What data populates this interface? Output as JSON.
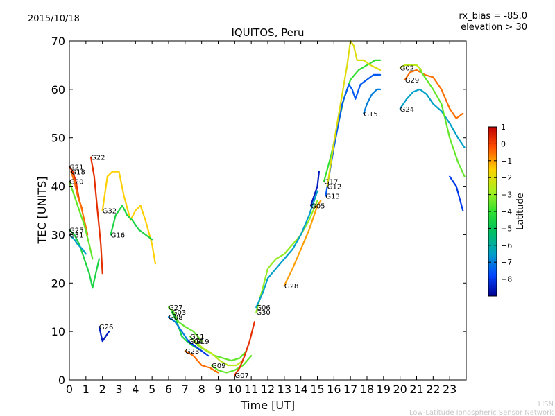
{
  "chart_data": {
    "type": "scatter",
    "date": "2015/10/18",
    "title": "IQUITOS, Peru",
    "meta": [
      "rx_bias = -85.0",
      "elevation > 30"
    ],
    "xlabel": "Time [UT]",
    "ylabel": "TEC [UNITS]",
    "xlim": [
      0,
      24
    ],
    "ylim": [
      0,
      70
    ],
    "xticks": [
      0,
      1,
      2,
      3,
      4,
      5,
      6,
      7,
      8,
      9,
      10,
      11,
      12,
      13,
      14,
      15,
      16,
      17,
      18,
      19,
      20,
      21,
      22,
      23
    ],
    "yticks": [
      0,
      10,
      20,
      30,
      40,
      50,
      60,
      70
    ],
    "colorbar": {
      "label": "Latitude",
      "range": [
        -9,
        1
      ],
      "ticks": [
        1,
        0,
        -1,
        -2,
        -3,
        -4,
        -5,
        -6,
        -7,
        -8
      ]
    },
    "series": [
      {
        "name": "G21",
        "lat": 0.3,
        "points": [
          [
            0.0,
            44
          ],
          [
            0.2,
            43
          ],
          [
            0.4,
            41
          ],
          [
            0.6,
            37
          ],
          [
            0.8,
            35
          ]
        ]
      },
      {
        "name": "G18",
        "lat": -0.5,
        "points": [
          [
            0.1,
            43
          ],
          [
            0.3,
            41
          ],
          [
            0.5,
            38
          ],
          [
            0.7,
            36
          ],
          [
            0.9,
            33
          ],
          [
            1.1,
            30
          ]
        ]
      },
      {
        "name": "G20",
        "lat": -3.5,
        "points": [
          [
            0.0,
            41
          ],
          [
            0.3,
            38
          ],
          [
            0.6,
            35
          ],
          [
            0.9,
            32
          ],
          [
            1.2,
            28
          ],
          [
            1.4,
            25
          ]
        ]
      },
      {
        "name": "G22",
        "lat": 0.3,
        "points": [
          [
            1.3,
            46
          ],
          [
            1.5,
            42
          ],
          [
            1.7,
            35
          ],
          [
            1.9,
            28
          ],
          [
            2.0,
            22
          ]
        ]
      },
      {
        "name": "G25",
        "lat": -4.5,
        "points": [
          [
            0.0,
            31
          ],
          [
            0.3,
            30
          ],
          [
            0.6,
            28
          ],
          [
            0.9,
            25
          ],
          [
            1.2,
            22
          ],
          [
            1.4,
            19
          ],
          [
            1.6,
            22
          ],
          [
            1.8,
            25
          ]
        ]
      },
      {
        "name": "G31",
        "lat": -6.5,
        "points": [
          [
            0.0,
            30
          ],
          [
            0.3,
            29
          ],
          [
            0.5,
            28
          ],
          [
            0.8,
            27
          ],
          [
            1.0,
            26
          ]
        ]
      },
      {
        "name": "G26",
        "lat": -8.5,
        "points": [
          [
            1.8,
            11
          ],
          [
            2.0,
            8
          ],
          [
            2.2,
            9
          ],
          [
            2.4,
            10
          ]
        ]
      },
      {
        "name": "G32",
        "lat": -1.5,
        "points": [
          [
            2.0,
            35
          ],
          [
            2.3,
            42
          ],
          [
            2.6,
            43
          ],
          [
            3.0,
            43
          ],
          [
            3.3,
            38
          ],
          [
            3.7,
            33
          ],
          [
            4.0,
            35
          ],
          [
            4.3,
            36
          ],
          [
            4.6,
            33
          ],
          [
            5.0,
            28
          ],
          [
            5.2,
            24
          ]
        ]
      },
      {
        "name": "G16",
        "lat": -4.5,
        "points": [
          [
            2.5,
            30
          ],
          [
            2.8,
            34
          ],
          [
            3.2,
            36
          ],
          [
            3.5,
            34
          ],
          [
            3.8,
            33
          ],
          [
            4.2,
            31
          ],
          [
            4.6,
            30
          ],
          [
            5.0,
            29
          ]
        ]
      },
      {
        "name": "G27",
        "lat": -3.5,
        "points": [
          [
            6.0,
            15
          ],
          [
            6.3,
            14
          ],
          [
            6.6,
            12
          ],
          [
            7.0,
            11
          ],
          [
            7.5,
            10
          ],
          [
            8.0,
            8
          ]
        ]
      },
      {
        "name": "G03",
        "lat": -4.5,
        "points": [
          [
            6.2,
            14
          ],
          [
            6.5,
            12
          ],
          [
            6.8,
            9
          ],
          [
            7.1,
            8
          ],
          [
            7.5,
            7
          ],
          [
            8.0,
            6
          ]
        ]
      },
      {
        "name": "G08",
        "lat": -7.0,
        "points": [
          [
            6.0,
            13
          ],
          [
            6.4,
            12
          ],
          [
            6.8,
            10
          ],
          [
            7.2,
            8
          ],
          [
            7.6,
            7
          ]
        ]
      },
      {
        "name": "G11",
        "lat": -3.5,
        "points": [
          [
            7.3,
            9
          ],
          [
            7.8,
            7
          ],
          [
            8.3,
            6
          ],
          [
            8.8,
            5
          ],
          [
            9.3,
            4.5
          ],
          [
            9.8,
            4
          ],
          [
            10.3,
            4.5
          ],
          [
            10.7,
            6
          ]
        ]
      },
      {
        "name": "G19",
        "lat": -2.5,
        "points": [
          [
            7.6,
            8
          ],
          [
            8.1,
            6.5
          ],
          [
            8.6,
            5.5
          ],
          [
            9.1,
            4
          ],
          [
            9.6,
            3
          ],
          [
            10.1,
            3
          ],
          [
            10.5,
            4
          ]
        ]
      },
      {
        "name": "G04",
        "lat": -8.0,
        "points": [
          [
            7.2,
            8
          ],
          [
            7.6,
            7
          ],
          [
            8.0,
            6
          ],
          [
            8.4,
            5
          ]
        ]
      },
      {
        "name": "G23",
        "lat": -0.5,
        "points": [
          [
            7.0,
            6
          ],
          [
            7.5,
            5
          ],
          [
            8.0,
            3
          ],
          [
            8.5,
            2.5
          ],
          [
            9.0,
            1.5
          ]
        ]
      },
      {
        "name": "G09",
        "lat": -3.5,
        "points": [
          [
            8.6,
            3
          ],
          [
            9.0,
            2
          ],
          [
            9.5,
            1.5
          ],
          [
            10.0,
            2
          ],
          [
            10.5,
            3
          ],
          [
            11.0,
            5
          ]
        ]
      },
      {
        "name": "G07",
        "lat": 0.3,
        "points": [
          [
            10.0,
            1
          ],
          [
            10.3,
            2.5
          ],
          [
            10.6,
            5
          ],
          [
            10.9,
            8
          ],
          [
            11.2,
            12
          ]
        ]
      },
      {
        "name": "G30",
        "lat": -3.0,
        "points": [
          [
            11.3,
            14
          ],
          [
            11.7,
            19
          ],
          [
            12.0,
            23
          ],
          [
            12.5,
            25
          ],
          [
            13.0,
            26
          ],
          [
            13.5,
            28
          ],
          [
            14.0,
            30
          ],
          [
            14.5,
            33
          ],
          [
            15.0,
            37
          ]
        ]
      },
      {
        "name": "G06",
        "lat": -6.5,
        "points": [
          [
            11.3,
            15
          ],
          [
            11.7,
            18
          ],
          [
            12.0,
            21
          ],
          [
            12.5,
            23
          ],
          [
            13.0,
            25
          ],
          [
            13.5,
            27
          ],
          [
            14.0,
            30
          ],
          [
            14.5,
            34
          ],
          [
            15.0,
            39
          ]
        ]
      },
      {
        "name": "G28",
        "lat": -1.0,
        "points": [
          [
            13.0,
            19.5
          ],
          [
            13.5,
            23
          ],
          [
            14.0,
            27
          ],
          [
            14.5,
            31
          ],
          [
            15.0,
            36
          ],
          [
            15.2,
            37
          ]
        ]
      },
      {
        "name": "G05",
        "lat": -8.5,
        "points": [
          [
            14.6,
            36
          ],
          [
            14.8,
            38
          ],
          [
            15.0,
            40
          ],
          [
            15.1,
            43
          ]
        ]
      },
      {
        "name": "G17",
        "lat": -4.0,
        "points": [
          [
            15.4,
            41
          ],
          [
            15.8,
            46
          ],
          [
            16.2,
            52
          ],
          [
            16.6,
            58
          ],
          [
            17.0,
            62
          ],
          [
            17.5,
            64
          ],
          [
            18.0,
            65
          ],
          [
            18.5,
            66
          ],
          [
            18.8,
            66
          ]
        ]
      },
      {
        "name": "G13",
        "lat": -7.5,
        "points": [
          [
            15.5,
            38
          ],
          [
            16.0,
            48
          ],
          [
            16.5,
            57
          ],
          [
            16.9,
            61
          ],
          [
            17.1,
            60
          ],
          [
            17.3,
            58
          ],
          [
            17.6,
            61
          ],
          [
            18.0,
            62
          ],
          [
            18.4,
            63
          ],
          [
            18.8,
            63
          ]
        ]
      },
      {
        "name": "G12",
        "lat": -2.0,
        "points": [
          [
            15.6,
            40
          ],
          [
            16.0,
            49
          ],
          [
            16.4,
            57
          ],
          [
            16.8,
            65
          ],
          [
            17.0,
            70
          ],
          [
            17.2,
            69
          ],
          [
            17.4,
            66
          ],
          [
            17.8,
            66
          ],
          [
            18.2,
            65
          ],
          [
            18.8,
            64
          ]
        ]
      },
      {
        "name": "G15",
        "lat": -7.0,
        "points": [
          [
            17.8,
            55
          ],
          [
            18.0,
            57
          ],
          [
            18.3,
            59
          ],
          [
            18.6,
            60
          ],
          [
            18.8,
            60
          ]
        ]
      },
      {
        "name": "G02",
        "lat": -2.5,
        "points": [
          [
            20.0,
            64.5
          ],
          [
            20.3,
            65
          ],
          [
            20.6,
            65
          ],
          [
            21.0,
            65
          ],
          [
            21.3,
            64
          ]
        ]
      },
      {
        "name": "G29",
        "lat": -0.5,
        "points": [
          [
            20.3,
            62
          ],
          [
            20.6,
            63.5
          ],
          [
            21.0,
            64
          ],
          [
            21.5,
            63
          ],
          [
            22.0,
            62.5
          ],
          [
            22.5,
            60
          ],
          [
            23.0,
            56
          ],
          [
            23.4,
            54
          ],
          [
            23.8,
            55
          ]
        ]
      },
      {
        "name": "G24",
        "lat": -6.5,
        "points": [
          [
            20.0,
            56
          ],
          [
            20.4,
            58
          ],
          [
            20.8,
            59.5
          ],
          [
            21.2,
            60
          ],
          [
            21.6,
            59
          ],
          [
            22.0,
            57
          ],
          [
            22.5,
            55.5
          ],
          [
            23.0,
            53
          ],
          [
            23.5,
            50
          ],
          [
            23.9,
            48
          ]
        ]
      },
      {
        "name": "",
        "lat": -3.5,
        "points": [
          [
            21.2,
            64
          ],
          [
            21.6,
            62
          ],
          [
            22.0,
            60
          ],
          [
            22.5,
            57
          ],
          [
            23.0,
            50
          ],
          [
            23.5,
            45
          ],
          [
            23.9,
            42
          ]
        ]
      },
      {
        "name": "",
        "lat": -8.0,
        "points": [
          [
            23.0,
            42
          ],
          [
            23.4,
            40
          ],
          [
            23.8,
            35
          ]
        ]
      }
    ]
  },
  "footer": {
    "line1": "LISN",
    "line2": "Low-Latitude Ionospheric Sensor Network"
  }
}
